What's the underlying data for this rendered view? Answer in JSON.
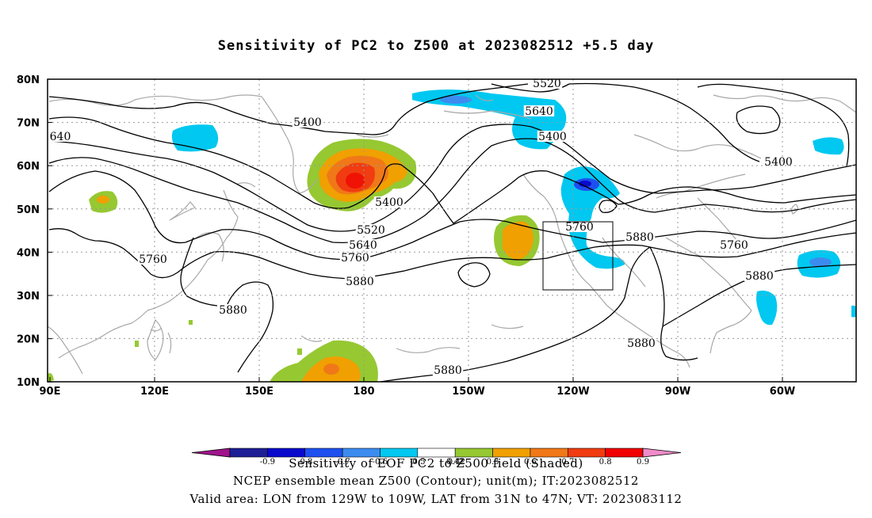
{
  "title": "Sensitivity of PC2 to Z500 at 2023082512 +5.5 day",
  "x_ticks": [
    "90E",
    "120E",
    "150E",
    "180",
    "150W",
    "120W",
    "90W",
    "60W"
  ],
  "y_ticks": [
    "80N",
    "70N",
    "60N",
    "50N",
    "40N",
    "30N",
    "20N",
    "10N"
  ],
  "contour_labels": [
    "5400",
    "5520",
    "5640",
    "5400",
    "5400",
    "5400",
    "640",
    "5520",
    "5640",
    "5760",
    "5760",
    "5880",
    "5760",
    "5880",
    "5760",
    "5880",
    "5880",
    "5880",
    "5880"
  ],
  "colorbar": {
    "ticks": [
      "-0.9",
      "-0.8",
      "-0.7",
      "-0.6",
      "-0.5",
      "-0.42",
      "0.42",
      "0.5",
      "0.6",
      "0.7",
      "0.8",
      "0.9"
    ],
    "colors": [
      "#a0148c",
      "#1e1e96",
      "#0a0acd",
      "#1e50f0",
      "#3c8cf0",
      "#00c8f0",
      "#ffffff",
      "#96c832",
      "#f0a000",
      "#f07818",
      "#f03c10",
      "#f00000",
      "#f08cc8"
    ]
  },
  "valid_box": {
    "lon": [
      -129,
      -109
    ],
    "lat": [
      31,
      47
    ]
  },
  "footer": {
    "line1": "Sensitivity of EOF PC2 to Z500 field (Shaded)",
    "line2": "NCEP ensemble mean Z500 (Contour); unit(m); IT:2023082512",
    "line3": "Valid area: LON from 129W to 109W, LAT from 31N to 47N; VT: 2023083112"
  }
}
